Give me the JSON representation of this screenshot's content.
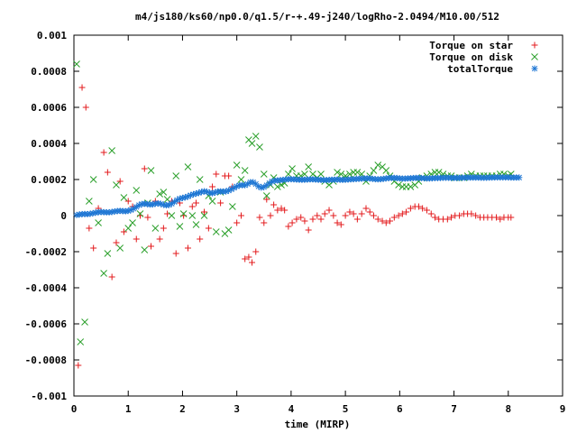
{
  "chart_data": {
    "type": "scatter",
    "title": "m4/js180/ks60/np0.0/q1.5/r-+.49-j240/logRho-2.0494/M10.00/512",
    "xlabel": "time (MIRP)",
    "ylabel": "",
    "xlim": [
      0,
      9
    ],
    "ylim": [
      -0.001,
      0.001
    ],
    "xticks": [
      0,
      1,
      2,
      3,
      4,
      5,
      6,
      7,
      8,
      9
    ],
    "xtick_labels": [
      "0",
      "1",
      "2",
      "3",
      "4",
      "5",
      "6",
      "7",
      "8",
      "9"
    ],
    "yticks": [
      -0.001,
      -0.0008,
      -0.0006,
      -0.0004,
      -0.0002,
      0,
      0.0002,
      0.0004,
      0.0006,
      0.0008,
      0.001
    ],
    "ytick_labels": [
      "-0.001",
      "-0.0008",
      "-0.0006",
      "-0.0004",
      "-0.0002",
      "0",
      "0.0002",
      "0.0004",
      "0.0006",
      "0.0008",
      "0.001"
    ],
    "grid": false,
    "legend_position": "top-right",
    "series": [
      {
        "name": "Torque on star",
        "marker": "plus",
        "color": "#e31a1c",
        "x": [
          0.08,
          0.15,
          0.22,
          0.28,
          0.36,
          0.45,
          0.55,
          0.62,
          0.7,
          0.78,
          0.85,
          0.92,
          1.0,
          1.08,
          1.15,
          1.22,
          1.3,
          1.36,
          1.42,
          1.5,
          1.58,
          1.65,
          1.72,
          1.8,
          1.88,
          1.95,
          2.02,
          2.1,
          2.18,
          2.25,
          2.32,
          2.4,
          2.48,
          2.55,
          2.62,
          2.7,
          2.78,
          2.85,
          2.92,
          3.0,
          3.08,
          3.15,
          3.22,
          3.28,
          3.35,
          3.42,
          3.5,
          3.55,
          3.62,
          3.68,
          3.75,
          3.82,
          3.88,
          3.95,
          4.02,
          4.1,
          4.18,
          4.25,
          4.32,
          4.4,
          4.48,
          4.55,
          4.62,
          4.7,
          4.78,
          4.85,
          4.92,
          5.0,
          5.08,
          5.15,
          5.22,
          5.3,
          5.38,
          5.45,
          5.52,
          5.6,
          5.68,
          5.75,
          5.82,
          5.9,
          5.98,
          6.05,
          6.12,
          6.2,
          6.28,
          6.35,
          6.42,
          6.5,
          6.58,
          6.65,
          6.72,
          6.8,
          6.88,
          6.95,
          7.02,
          7.1,
          7.18,
          7.25,
          7.32,
          7.4,
          7.48,
          7.55,
          7.62,
          7.7,
          7.78,
          7.85,
          7.92,
          8.0,
          8.05
        ],
        "y": [
          -0.00083,
          0.00071,
          0.0006,
          -7e-05,
          -0.00018,
          4e-05,
          0.00035,
          0.00024,
          -0.00034,
          -0.00015,
          0.00019,
          -9e-05,
          8e-05,
          5e-05,
          -0.00013,
          0.0,
          0.00026,
          -1e-05,
          -0.00017,
          8e-05,
          -0.00013,
          -7e-05,
          1e-05,
          8e-05,
          -0.00021,
          7e-05,
          0.0,
          -0.00018,
          5e-05,
          7e-05,
          -0.00013,
          2e-05,
          -7e-05,
          0.00016,
          0.00023,
          7e-05,
          0.00022,
          0.00022,
          0.00016,
          -4e-05,
          0.0,
          -0.00024,
          -0.00023,
          -0.00026,
          -0.0002,
          -1e-05,
          -4e-05,
          9e-05,
          0.0,
          6e-05,
          3e-05,
          4e-05,
          3e-05,
          -6e-05,
          -4e-05,
          -2e-05,
          -1e-05,
          -3e-05,
          -8e-05,
          -2e-05,
          0.0,
          -2e-05,
          1e-05,
          3e-05,
          0.0,
          -4e-05,
          -5e-05,
          0.0,
          2e-05,
          1e-05,
          -2e-05,
          1e-05,
          4e-05,
          2e-05,
          0.0,
          -2e-05,
          -3e-05,
          -4e-05,
          -3e-05,
          -1e-05,
          0.0,
          1e-05,
          2e-05,
          4e-05,
          5e-05,
          5e-05,
          4e-05,
          3e-05,
          1e-05,
          -1e-05,
          -2e-05,
          -2e-05,
          -2e-05,
          -1e-05,
          0.0,
          0.0,
          1e-05,
          1e-05,
          1e-05,
          0.0,
          -1e-05,
          -1e-05,
          -1e-05,
          -1e-05,
          -1e-05,
          -2e-05,
          -1e-05,
          -1e-05,
          -1e-05
        ]
      },
      {
        "name": "Torque on disk",
        "marker": "cross",
        "color": "#2ca02c",
        "x": [
          0.05,
          0.12,
          0.2,
          0.28,
          0.36,
          0.45,
          0.55,
          0.62,
          0.7,
          0.78,
          0.85,
          0.92,
          1.0,
          1.08,
          1.15,
          1.22,
          1.3,
          1.36,
          1.42,
          1.5,
          1.58,
          1.65,
          1.72,
          1.8,
          1.88,
          1.95,
          2.02,
          2.1,
          2.18,
          2.25,
          2.32,
          2.4,
          2.48,
          2.55,
          2.62,
          2.7,
          2.78,
          2.85,
          2.92,
          3.0,
          3.08,
          3.15,
          3.22,
          3.28,
          3.35,
          3.42,
          3.5,
          3.55,
          3.62,
          3.68,
          3.75,
          3.82,
          3.88,
          3.95,
          4.02,
          4.1,
          4.18,
          4.25,
          4.32,
          4.4,
          4.48,
          4.55,
          4.62,
          4.7,
          4.78,
          4.85,
          4.92,
          5.0,
          5.08,
          5.15,
          5.22,
          5.3,
          5.38,
          5.45,
          5.52,
          5.6,
          5.68,
          5.75,
          5.82,
          5.9,
          5.98,
          6.05,
          6.12,
          6.2,
          6.28,
          6.35,
          6.42,
          6.5,
          6.58,
          6.65,
          6.72,
          6.8,
          6.88,
          6.95,
          7.02,
          7.1,
          7.18,
          7.25,
          7.32,
          7.4,
          7.48,
          7.55,
          7.62,
          7.7,
          7.78,
          7.85,
          7.92,
          8.0,
          8.05
        ],
        "y": [
          0.00084,
          -0.0007,
          -0.00059,
          8e-05,
          0.0002,
          -4e-05,
          -0.00032,
          -0.00021,
          0.00036,
          0.00017,
          -0.00018,
          0.0001,
          -7e-05,
          -4e-05,
          0.00014,
          1e-05,
          -0.00019,
          7e-05,
          0.00025,
          -7e-05,
          0.00012,
          0.00013,
          9e-05,
          0.0,
          0.00022,
          -6e-05,
          1e-05,
          0.00027,
          0.0,
          -5e-05,
          0.0002,
          0.0,
          0.00011,
          8e-05,
          -9e-05,
          0.00013,
          -0.0001,
          -8e-05,
          5e-05,
          0.00028,
          0.0002,
          0.00025,
          0.00042,
          0.0004,
          0.00044,
          0.00038,
          0.00023,
          0.00011,
          0.00017,
          0.00021,
          0.00016,
          0.00017,
          0.00018,
          0.00023,
          0.00026,
          0.00022,
          0.00022,
          0.00023,
          0.00027,
          0.00023,
          0.00021,
          0.00023,
          0.00019,
          0.00017,
          0.00019,
          0.00024,
          0.00023,
          0.00022,
          0.00023,
          0.00024,
          0.00024,
          0.00023,
          0.00019,
          0.00022,
          0.00025,
          0.00028,
          0.00027,
          0.00025,
          0.00022,
          0.00019,
          0.00017,
          0.00016,
          0.00016,
          0.00016,
          0.00017,
          0.00019,
          0.00021,
          0.00022,
          0.00023,
          0.00024,
          0.00024,
          0.00023,
          0.00022,
          0.00022,
          0.00021,
          0.00021,
          0.00021,
          0.00022,
          0.00023,
          0.00022,
          0.00022,
          0.00022,
          0.00022,
          0.00022,
          0.00022,
          0.00023,
          0.00023,
          0.00022,
          0.00023
        ]
      },
      {
        "name": "totalTorque",
        "marker": "star",
        "color": "#1f77d4",
        "x_start": 0.05,
        "x_step": 0.05,
        "y": [
          3e-06,
          6e-06,
          8e-06,
          9e-06,
          8e-06,
          1e-05,
          1.3e-05,
          1.6e-05,
          1.9e-05,
          2e-05,
          1.9e-05,
          1.8e-05,
          1.8e-05,
          2e-05,
          2.3e-05,
          2.5e-05,
          2.6e-05,
          2.5e-05,
          2.4e-05,
          2.6e-05,
          3.1e-05,
          3.8e-05,
          4.8e-05,
          5.8e-05,
          6.4e-05,
          6.6e-05,
          6.4e-05,
          6.1e-05,
          6.2e-05,
          6.6e-05,
          6.8e-05,
          6.5e-05,
          6e-05,
          5.7e-05,
          5.9e-05,
          6.6e-05,
          7.6e-05,
          8.6e-05,
          9.4e-05,
          9.8e-05,
          0.000101,
          0.000106,
          0.000113,
          0.000118,
          0.000122,
          0.000126,
          0.000131,
          0.000135,
          0.000132,
          0.000126,
          0.000124,
          0.000128,
          0.000133,
          0.000134,
          0.000133,
          0.000134,
          0.000139,
          0.000146,
          0.000154,
          0.000162,
          0.000168,
          0.000169,
          0.000168,
          0.000175,
          0.000185,
          0.000185,
          0.000175,
          0.000162,
          0.000155,
          0.000158,
          0.000168,
          0.00018,
          0.000189,
          0.000194,
          0.000195,
          0.000196,
          0.000198,
          0.0002,
          0.000202,
          0.000202,
          0.000201,
          0.0002,
          0.000199,
          0.000199,
          0.000199,
          0.0002,
          0.000201,
          0.000201,
          0.0002,
          0.000199,
          0.000198,
          0.000197,
          0.000197,
          0.000198,
          0.000199,
          0.000199,
          0.0002,
          0.000199,
          0.000198,
          0.000199,
          0.0002,
          0.000201,
          0.000202,
          0.000203,
          0.000204,
          0.000205,
          0.000206,
          0.000206,
          0.000206,
          0.000204,
          0.000202,
          0.000201,
          0.000202,
          0.000204,
          0.000206,
          0.000208,
          0.000209,
          0.000209,
          0.000208,
          0.000206,
          0.000205,
          0.000205,
          0.000206,
          0.000207,
          0.000208,
          0.000209,
          0.000209,
          0.000208,
          0.000207,
          0.000206,
          0.000206,
          0.000207,
          0.000208,
          0.000208,
          0.000209,
          0.00021,
          0.00021,
          0.00021,
          0.000209,
          0.000209,
          0.000209,
          0.000209,
          0.00021,
          0.00021,
          0.000211,
          0.000211,
          0.000211,
          0.000211,
          0.000211,
          0.00021,
          0.00021,
          0.00021,
          0.000211,
          0.000211,
          0.000212,
          0.000212,
          0.000212,
          0.000212,
          0.000212,
          0.000212,
          0.000211,
          0.000211,
          0.000211,
          0.000211
        ]
      }
    ]
  }
}
